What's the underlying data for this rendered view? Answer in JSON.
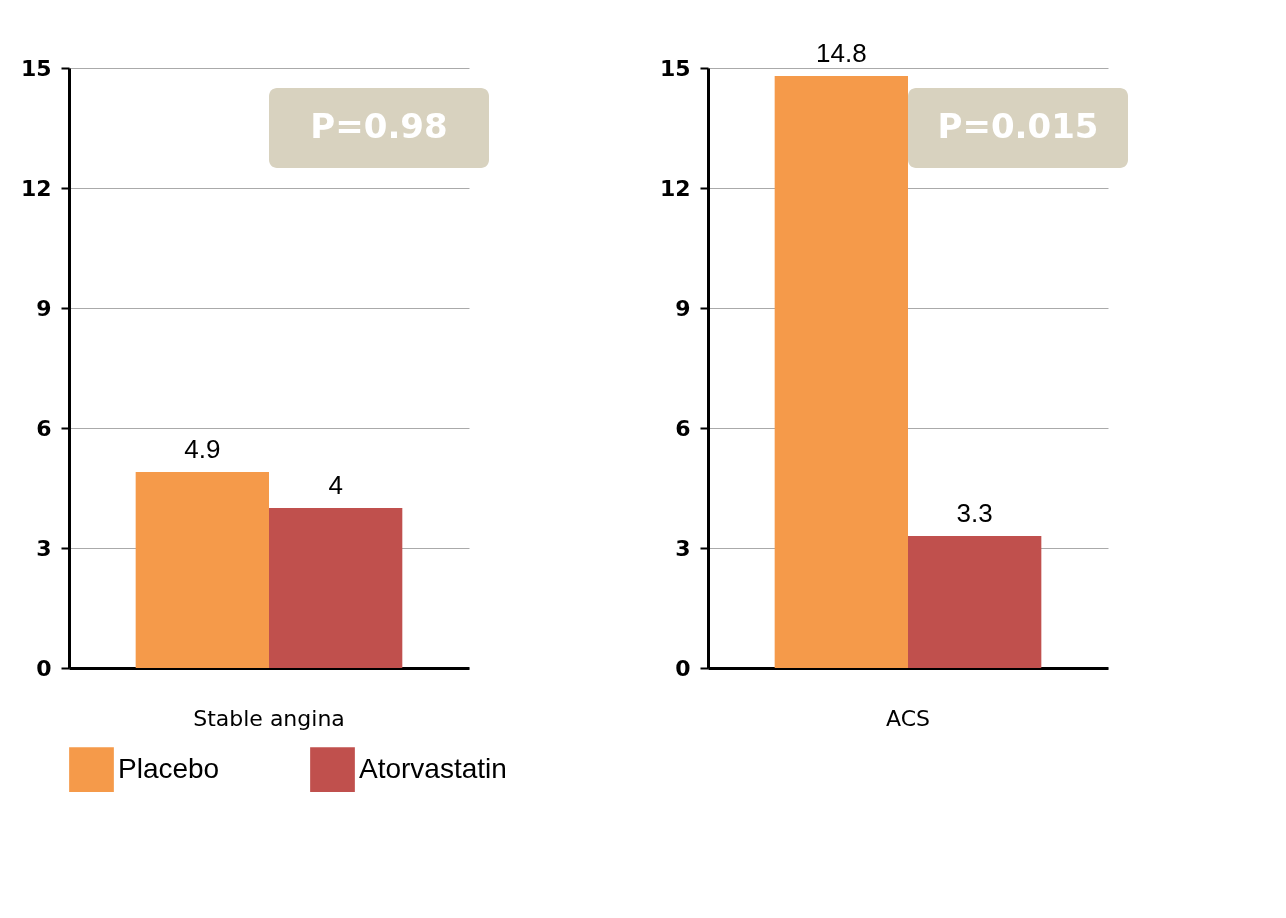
{
  "chart_data": [
    {
      "type": "bar",
      "categories": [
        "Stable angina"
      ],
      "series": [
        {
          "name": "Placebo",
          "color": "#f59a4a",
          "values": [
            4.9
          ]
        },
        {
          "name": "Atorvastatin",
          "color": "#c0504d",
          "values": [
            4
          ]
        }
      ],
      "ylim": [
        0,
        15
      ],
      "yticks": [
        0,
        3,
        6,
        9,
        12,
        15
      ],
      "grid": "y",
      "data_labels": true,
      "annotations": [
        "P=0.98"
      ],
      "legend": "bottom"
    },
    {
      "type": "bar",
      "categories": [
        "ACS"
      ],
      "series": [
        {
          "name": "Placebo",
          "color": "#f59a4a",
          "values": [
            14.8
          ]
        },
        {
          "name": "Atorvastatin",
          "color": "#c0504d",
          "values": [
            3.3
          ]
        }
      ],
      "ylim": [
        0,
        15
      ],
      "yticks": [
        0,
        3,
        6,
        9,
        12,
        15
      ],
      "grid": "y",
      "data_labels": true,
      "annotations": [
        "P=0.015"
      ],
      "legend": "bottom"
    }
  ]
}
